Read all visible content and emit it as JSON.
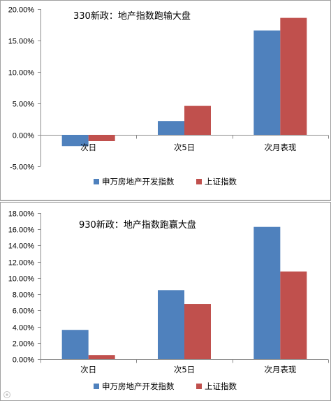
{
  "chart_data": [
    {
      "type": "bar",
      "title": "330新政：地产指数跑输大盘",
      "categories": [
        "次日",
        "次5日",
        "次月表现"
      ],
      "series": [
        {
          "name": "申万房地产开发指数",
          "color": "#4F81BD",
          "values": [
            -1.8,
            2.2,
            16.6
          ]
        },
        {
          "name": "上证指数",
          "color": "#C0504D",
          "values": [
            -1.0,
            4.6,
            18.6
          ]
        }
      ],
      "ylim": [
        -5,
        20
      ],
      "yticks": [
        "20.00%",
        "15.00%",
        "10.00%",
        "5.00%",
        "0.00%",
        "-5.00%"
      ],
      "ytick_values": [
        20,
        15,
        10,
        5,
        0,
        -5
      ],
      "xlabel": "",
      "ylabel": "",
      "legend": "bottom"
    },
    {
      "type": "bar",
      "title": "930新政：地产指数跑赢大盘",
      "categories": [
        "次日",
        "次5日",
        "次月表现"
      ],
      "series": [
        {
          "name": "申万房地产开发指数",
          "color": "#4F81BD",
          "values": [
            3.6,
            8.5,
            16.3
          ]
        },
        {
          "name": "上证指数",
          "color": "#C0504D",
          "values": [
            0.5,
            6.8,
            10.8
          ]
        }
      ],
      "ylim": [
        0,
        18
      ],
      "yticks": [
        "18.00%",
        "16.00%",
        "14.00%",
        "12.00%",
        "10.00%",
        "8.00%",
        "6.00%",
        "4.00%",
        "2.00%",
        "0.00%"
      ],
      "ytick_values": [
        18,
        16,
        14,
        12,
        10,
        8,
        6,
        4,
        2,
        0
      ],
      "xlabel": "",
      "ylabel": "",
      "legend": "bottom"
    }
  ]
}
